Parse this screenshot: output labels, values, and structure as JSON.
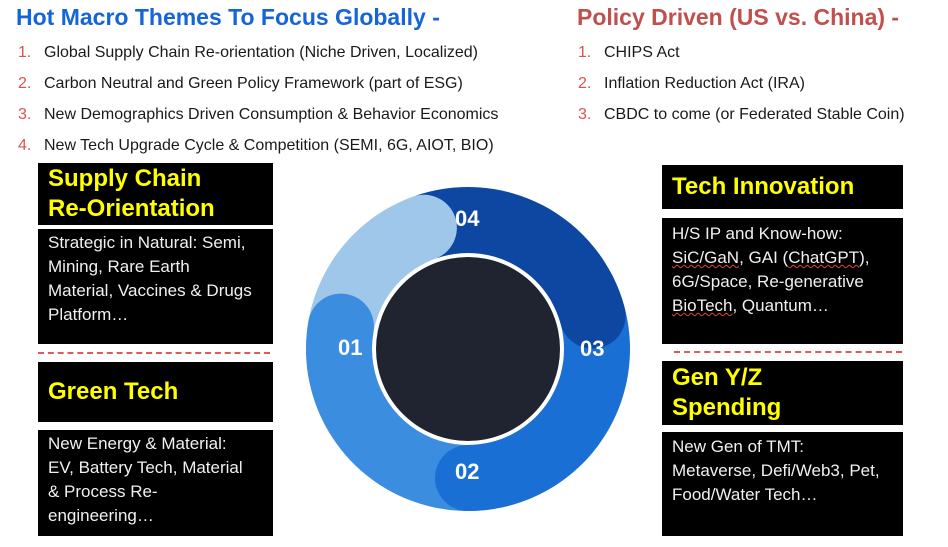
{
  "header": {
    "left_title": "Hot Macro Themes To Focus Globally -",
    "right_title": "Policy Driven (US vs. China) -"
  },
  "left_list": [
    {
      "num": "1.",
      "text": "Global Supply Chain Re-orientation (Niche Driven, Localized)"
    },
    {
      "num": "2.",
      "text": "Carbon Neutral and Green Policy Framework (part of ESG)"
    },
    {
      "num": "3.",
      "text": "New Demographics Driven Consumption & Behavior Economics"
    },
    {
      "num": "4.",
      "text": "New Tech Upgrade Cycle & Competition (SEMI, 6G, AIOT, BIO)"
    }
  ],
  "right_list": [
    {
      "num": "1.",
      "text": "CHIPS Act"
    },
    {
      "num": "2.",
      "text": "Inflation Reduction Act (IRA)"
    },
    {
      "num": "3.",
      "text": "CBDC to come (or Federated Stable Coin)"
    }
  ],
  "boxes": {
    "supply_chain": {
      "title_line1": "Supply Chain",
      "title_line2": "Re-Orientation",
      "lines": [
        "Strategic in Natural:  Semi,",
        "Mining, Rare Earth",
        "Material, Vaccines & Drugs",
        "Platform…"
      ]
    },
    "green_tech": {
      "title": "Green Tech",
      "lines": [
        "New Energy & Material:",
        "EV, Battery Tech, Material",
        "& Process Re-engineering…"
      ]
    },
    "tech_innovation": {
      "title": "Tech Innovation",
      "line1": "H/S IP and Know-how:",
      "line2_a": "SiC/GaN",
      "line2_b": ", GAI (",
      "line2_c": "ChatGPT",
      "line2_d": "),",
      "line3": "6G/Space, Re-generative",
      "line4_a": "BioTech",
      "line4_b": ", Quantum…"
    },
    "gen_yz": {
      "title_line1": "Gen Y/Z",
      "title_line2": "Spending",
      "lines": [
        "New Gen of TMT:",
        "Metaverse, Defi/Web3, Pet,",
        "Food/Water Tech…"
      ]
    }
  },
  "ring": {
    "labels": {
      "s01": "01",
      "s02": "02",
      "s03": "03",
      "s04": "04"
    },
    "colors": {
      "s01": "#9fc7ea",
      "s02": "#3b8de0",
      "s03": "#1a6fd4",
      "s04": "#0d47a1",
      "center": "#1f2430"
    }
  }
}
